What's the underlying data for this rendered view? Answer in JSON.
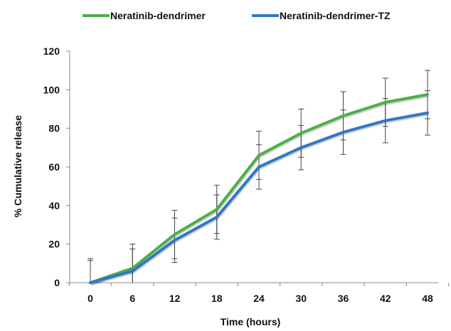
{
  "chart_data": {
    "type": "line",
    "title": "",
    "xlabel": "Time (hours)",
    "ylabel": "% Cumulative release",
    "x": [
      0,
      6,
      12,
      18,
      24,
      30,
      36,
      42,
      48
    ],
    "x_tick_labels": [
      "0",
      "6",
      "12",
      "18",
      "24",
      "30",
      "36",
      "42",
      "48"
    ],
    "ylim": [
      0,
      120
    ],
    "y_ticks": [
      0,
      20,
      40,
      60,
      80,
      100,
      120
    ],
    "y_tick_labels": [
      "0",
      "20",
      "40",
      "60",
      "80",
      "100",
      "120"
    ],
    "grid": false,
    "legend_position": "top",
    "series": [
      {
        "name": "Neratinib-dendrimer",
        "color": "#4caf46",
        "values": [
          0,
          7.5,
          25,
          38,
          66,
          77.5,
          86.5,
          93.5,
          97.5
        ],
        "error": [
          12.5,
          12.5,
          12.5,
          12.5,
          12.5,
          12.5,
          12.5,
          12.5,
          12.5
        ]
      },
      {
        "name": "Neratinib-dendrimer-TZ",
        "color": "#2f78c4",
        "values": [
          0,
          6,
          22,
          34,
          60,
          70,
          78,
          84,
          88
        ],
        "error": [
          11.5,
          11.5,
          11.5,
          11.5,
          11.5,
          11.5,
          11.5,
          11.5,
          11.5
        ]
      }
    ]
  }
}
